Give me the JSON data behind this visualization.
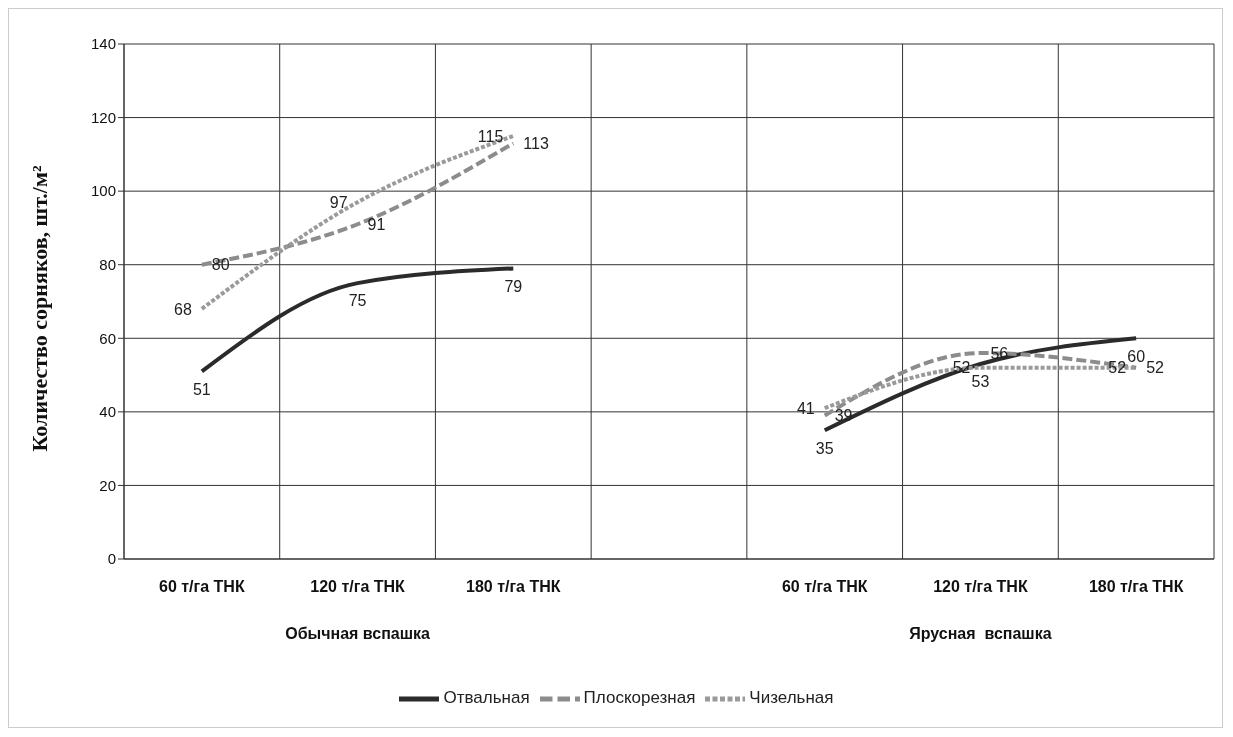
{
  "chart_data": {
    "type": "line",
    "categories": [
      "60 т/га ТНК",
      "120 т/га ТНК",
      "180 т/га ТНК",
      null,
      "60 т/га ТНК",
      "120 т/га ТНК",
      "180 т/га ТНК"
    ],
    "ylabel": "Количество сорняков, шт./м²",
    "annotations": [
      "Обычная вспашка",
      "Ярусная  вспашка"
    ],
    "series": [
      {
        "name": "Отвальная",
        "color": "#2b2b2b",
        "line_style": "solid",
        "values": [
          51,
          75,
          79,
          null,
          35,
          53,
          60
        ]
      },
      {
        "name": "Плоскорезная",
        "color": "#8c8c8c",
        "line_style": "dashed",
        "values": [
          80,
          91,
          113,
          null,
          39,
          56,
          52
        ]
      },
      {
        "name": "Чизельная",
        "color": "#9a9a9a",
        "line_style": "dotted",
        "values": [
          68,
          97,
          115,
          null,
          41,
          52,
          52
        ]
      }
    ],
    "ylim": [
      0,
      140
    ],
    "yticks": [
      0,
      20,
      40,
      60,
      80,
      100,
      120,
      140
    ],
    "grid": true,
    "legend": "bottom",
    "data_labels": true,
    "marker": "none"
  }
}
